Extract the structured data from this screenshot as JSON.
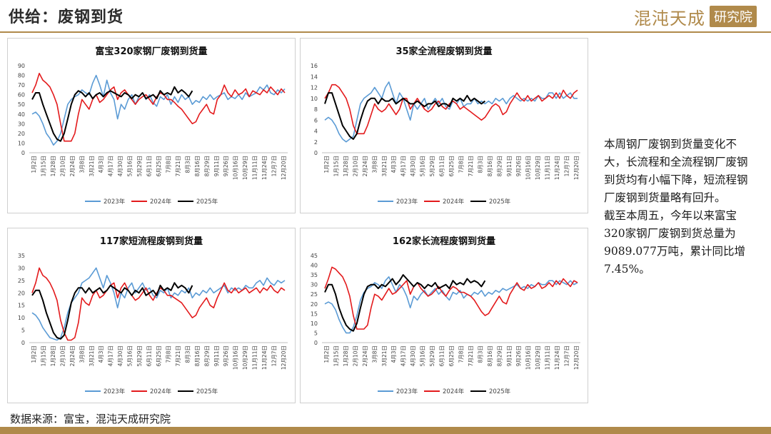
{
  "header": {
    "title": "供给：废钢到货",
    "brand": "混沌天成",
    "brand_sub": "研究院"
  },
  "side_note": [
    "本周钢厂废钢到货量变化不大，长流程和全流程钢厂废钢到货均有小幅下降，短流程钢厂废钢到货量略有回升。",
    "截至本周五，今年以来富宝320家钢厂废钢到货总量为9089.077万吨，累计同比增7.45%。"
  ],
  "source": "数据来源：富宝，混沌天成研究院",
  "colors": {
    "y2023": "#5b9bd5",
    "y2024": "#e31a1c",
    "y2025": "#000000",
    "accent": "#b08a4b"
  },
  "x_ticks": [
    "1月2日",
    "1月15日",
    "1月28日",
    "2月10日",
    "2月24日",
    "3月8日",
    "3月21日",
    "4月3日",
    "4月17日",
    "4月30日",
    "5月16日",
    "5月29日",
    "6月11日",
    "6月25日",
    "7月8日",
    "7月21日",
    "8月3日",
    "8月16日",
    "8月29日",
    "9月11日",
    "9月26日",
    "10月16日",
    "10月29日",
    "11月11日",
    "11月24日",
    "12月7日",
    "12月20日"
  ],
  "chart_data": [
    {
      "type": "line",
      "title": "富宝320家钢厂废钢到货量",
      "ylim": [
        0,
        90
      ],
      "yticks": [
        0,
        10,
        20,
        30,
        40,
        50,
        60,
        70,
        80,
        90
      ],
      "legend": "bottom",
      "series": [
        {
          "name": "2023年",
          "values": [
            40,
            42,
            38,
            30,
            20,
            15,
            8,
            12,
            20,
            35,
            50,
            55,
            58,
            60,
            65,
            62,
            60,
            72,
            80,
            70,
            58,
            75,
            62,
            55,
            35,
            50,
            45,
            55,
            60,
            50,
            58,
            62,
            55,
            60,
            52,
            48,
            58,
            55,
            60,
            50,
            58,
            52,
            60,
            55,
            58,
            50,
            54,
            52,
            58,
            55,
            60,
            55,
            58,
            60,
            62,
            55,
            58,
            56,
            60,
            55,
            62,
            58,
            60,
            62,
            68,
            65,
            70,
            62,
            60,
            65,
            62,
            66
          ]
        },
        {
          "name": "2024年",
          "values": [
            62,
            70,
            82,
            75,
            72,
            68,
            60,
            50,
            30,
            12,
            12,
            12,
            20,
            40,
            55,
            50,
            45,
            55,
            60,
            52,
            55,
            60,
            65,
            68,
            55,
            62,
            65,
            60,
            55,
            50,
            55,
            58,
            60,
            55,
            50,
            58,
            62,
            60,
            55,
            55,
            52,
            48,
            45,
            40,
            35,
            30,
            32,
            40,
            45,
            50,
            42,
            40,
            55,
            60,
            70,
            62,
            58,
            65,
            60,
            62,
            66,
            58,
            64,
            62,
            60,
            65,
            62,
            68,
            64,
            60,
            66,
            62
          ]
        },
        {
          "name": "2025年",
          "values": [
            55,
            62,
            62,
            50,
            40,
            30,
            20,
            14,
            12,
            20,
            35,
            50,
            60,
            64,
            62,
            58,
            62,
            56,
            60,
            62,
            58,
            62,
            64,
            62,
            60,
            58,
            62,
            60,
            56,
            60,
            58,
            62,
            56,
            58,
            60,
            56,
            64,
            60,
            62,
            60,
            68,
            62,
            65,
            62,
            58,
            64
          ]
        }
      ]
    },
    {
      "type": "line",
      "title": "35家全流程废钢到货量",
      "ylim": [
        0,
        16
      ],
      "yticks": [
        0,
        2,
        4,
        6,
        8,
        10,
        12,
        14,
        16
      ],
      "legend": "bottom",
      "series": [
        {
          "name": "2023年",
          "values": [
            6,
            6.5,
            6,
            5,
            3.5,
            2.5,
            2,
            2.5,
            3,
            6,
            9,
            10,
            10.5,
            11,
            12,
            11,
            10,
            12,
            13,
            11,
            9,
            11,
            10,
            8,
            6,
            9,
            8,
            9,
            10,
            8,
            9,
            10,
            9,
            10,
            8.5,
            8,
            9.5,
            9,
            10,
            8.5,
            9,
            9,
            10,
            9,
            9.5,
            9,
            9.5,
            9,
            10,
            9.5,
            10,
            9,
            10,
            10.5,
            10,
            9.5,
            10,
            9.5,
            10,
            9.5,
            10.5,
            10,
            10,
            11,
            11,
            10,
            11,
            10,
            10.5,
            11,
            10,
            10
          ]
        },
        {
          "name": "2024年",
          "values": [
            10,
            11,
            12.5,
            12.5,
            12,
            11,
            10,
            8,
            5,
            3.5,
            3.5,
            3.5,
            5,
            7,
            9,
            8,
            7.5,
            8,
            9,
            8,
            7,
            8,
            10,
            10,
            8,
            9,
            10,
            9,
            8,
            7.5,
            8,
            9,
            9.5,
            8.5,
            8,
            9,
            9.5,
            9,
            8,
            8.5,
            8,
            7.5,
            7,
            6.5,
            6,
            6.5,
            7.5,
            8.5,
            9,
            8.5,
            7,
            7.5,
            9,
            10,
            11,
            10,
            9.5,
            10.5,
            9.5,
            10,
            10.5,
            9.5,
            10,
            10.5,
            10,
            11,
            10,
            11.5,
            10.5,
            10,
            11,
            11.5
          ]
        },
        {
          "name": "2025年",
          "values": [
            9,
            11,
            11,
            9,
            7,
            5,
            4,
            3,
            2.5,
            3.5,
            6,
            8,
            9.5,
            10,
            10,
            9,
            10,
            9.5,
            9.5,
            10,
            9,
            9.5,
            10,
            9.5,
            9,
            9,
            9.5,
            9,
            8.5,
            9,
            9,
            9.5,
            8.5,
            9,
            9,
            8.5,
            10,
            9.5,
            10,
            9.5,
            10.5,
            9.5,
            10,
            9.5,
            9,
            9.5
          ]
        }
      ]
    },
    {
      "type": "line",
      "title": "117家短流程废钢到货量",
      "ylim": [
        0,
        35
      ],
      "yticks": [
        0,
        5,
        10,
        15,
        20,
        25,
        30,
        35
      ],
      "legend": "bottom",
      "series": [
        {
          "name": "2023年",
          "values": [
            12,
            11,
            9,
            6,
            4,
            2,
            1.5,
            1,
            2,
            6,
            12,
            16,
            18,
            20,
            24,
            25,
            26,
            28,
            30,
            26,
            22,
            27,
            24,
            20,
            14,
            20,
            18,
            22,
            24,
            20,
            22,
            24,
            21,
            22,
            19,
            18,
            21,
            20,
            22,
            18,
            20,
            19,
            21,
            20,
            22,
            18,
            20,
            19,
            21,
            20,
            22,
            20,
            21,
            22,
            23,
            20,
            22,
            21,
            22,
            21,
            23,
            22,
            22,
            24,
            25,
            23,
            26,
            24,
            23,
            25,
            24,
            25
          ]
        },
        {
          "name": "2024年",
          "values": [
            20,
            24,
            30,
            27,
            26,
            24,
            21,
            17,
            9,
            4,
            1,
            1,
            2,
            8,
            18,
            16,
            15,
            19,
            21,
            18,
            19,
            21,
            23,
            24,
            18,
            22,
            24,
            21,
            19,
            17,
            18,
            20,
            22,
            19,
            17,
            20,
            22,
            21,
            19,
            19,
            18,
            17,
            16,
            14,
            12,
            10,
            11,
            14,
            16,
            18,
            15,
            14,
            18,
            21,
            24,
            21,
            20,
            22,
            20,
            21,
            22,
            20,
            21,
            22,
            20,
            22,
            21,
            23,
            21,
            20,
            22,
            21
          ]
        },
        {
          "name": "2025年",
          "values": [
            19,
            21,
            21,
            17,
            12,
            8,
            4,
            2,
            1.5,
            3,
            9,
            16,
            20,
            22,
            22,
            20,
            22,
            20,
            21,
            22,
            20,
            21,
            23,
            22,
            21,
            20,
            22,
            21,
            19,
            21,
            20,
            22,
            19,
            20,
            21,
            19,
            23,
            21,
            22,
            21,
            24,
            22,
            23,
            22,
            20,
            23
          ]
        }
      ]
    },
    {
      "type": "line",
      "title": "162家长流程废钢到货量",
      "ylim": [
        0,
        45
      ],
      "yticks": [
        0,
        5,
        10,
        15,
        20,
        25,
        30,
        35,
        40,
        45
      ],
      "legend": "bottom",
      "series": [
        {
          "name": "2023年",
          "values": [
            20,
            21,
            20,
            17,
            12,
            8,
            5,
            5,
            8,
            14,
            22,
            26,
            28,
            29,
            31,
            30,
            28,
            32,
            34,
            30,
            26,
            30,
            28,
            24,
            18,
            24,
            22,
            25,
            27,
            24,
            26,
            28,
            25,
            27,
            24,
            22,
            26,
            25,
            27,
            23,
            25,
            24,
            26,
            25,
            27,
            24,
            26,
            25,
            27,
            26,
            28,
            27,
            28,
            29,
            30,
            28,
            29,
            28,
            30,
            29,
            31,
            30,
            30,
            32,
            32,
            30,
            32,
            31,
            30,
            32,
            30,
            31
          ]
        },
        {
          "name": "2024年",
          "values": [
            28,
            33,
            39,
            38,
            36,
            34,
            30,
            24,
            14,
            7,
            7,
            7,
            9,
            18,
            25,
            24,
            22,
            25,
            28,
            25,
            26,
            28,
            30,
            32,
            25,
            29,
            31,
            28,
            26,
            24,
            25,
            27,
            29,
            26,
            24,
            27,
            29,
            28,
            26,
            26,
            25,
            24,
            22,
            19,
            16,
            14,
            15,
            18,
            21,
            24,
            21,
            20,
            25,
            28,
            31,
            28,
            27,
            30,
            28,
            29,
            31,
            28,
            29,
            31,
            29,
            32,
            30,
            33,
            31,
            29,
            32,
            31
          ]
        },
        {
          "name": "2025年",
          "values": [
            26,
            30,
            30,
            25,
            18,
            13,
            9,
            7,
            6,
            10,
            18,
            25,
            29,
            30,
            30,
            28,
            30,
            29,
            31,
            33,
            30,
            32,
            35,
            33,
            31,
            29,
            31,
            30,
            28,
            30,
            29,
            31,
            28,
            29,
            30,
            28,
            32,
            30,
            31,
            30,
            33,
            31,
            32,
            31,
            29,
            32
          ]
        }
      ]
    }
  ]
}
